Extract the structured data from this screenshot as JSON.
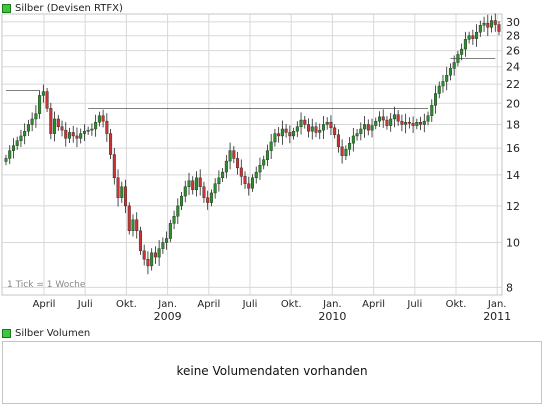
{
  "header": {
    "price_title": "Silber (Devisen RTFX)",
    "volume_title": "Silber Volumen"
  },
  "volume_message": "keine Volumendaten vorhanden",
  "tick_note": "1 Tick = 1 Woche",
  "colors": {
    "up": "#2a8f2a",
    "down": "#cc3333",
    "wick": "#222222",
    "grid": "#d8d8d8",
    "swatch": "#3fc63f"
  },
  "chart_data": {
    "type": "candlestick",
    "title": "Silber (Devisen RTFX)",
    "y_scale": "log",
    "ylim": [
      7.7,
      31.2
    ],
    "y_ticks": [
      8,
      10,
      12,
      14,
      16,
      18,
      20,
      22,
      24,
      26,
      28,
      30
    ],
    "x_ticks": [
      {
        "label": "April",
        "year": ""
      },
      {
        "label": "Juli",
        "year": ""
      },
      {
        "label": "Okt.",
        "year": ""
      },
      {
        "label": "Jan.",
        "year": "2009"
      },
      {
        "label": "April",
        "year": ""
      },
      {
        "label": "Juli",
        "year": ""
      },
      {
        "label": "Okt.",
        "year": ""
      },
      {
        "label": "Jan.",
        "year": "2010"
      },
      {
        "label": "April",
        "year": ""
      },
      {
        "label": "Juli",
        "year": ""
      },
      {
        "label": "Okt.",
        "year": ""
      },
      {
        "label": "Jan.",
        "year": "2011"
      }
    ],
    "weekly_close": [
      15.2,
      15.8,
      16.2,
      16.6,
      17.0,
      17.4,
      18.0,
      18.5,
      19.0,
      20.8,
      21.2,
      19.5,
      17.2,
      18.5,
      17.8,
      17.5,
      16.8,
      17.3,
      17.0,
      16.8,
      17.2,
      17.4,
      17.5,
      17.6,
      18.2,
      18.8,
      18.3,
      17.2,
      15.5,
      13.8,
      12.5,
      13.2,
      12.0,
      10.6,
      11.2,
      10.6,
      9.6,
      9.2,
      8.9,
      9.5,
      9.3,
      9.7,
      10.0,
      10.2,
      11.0,
      11.4,
      12.0,
      12.6,
      13.2,
      13.6,
      13.0,
      13.8,
      13.2,
      12.5,
      12.2,
      12.8,
      13.4,
      13.8,
      14.2,
      15.0,
      15.8,
      15.2,
      14.5,
      13.9,
      13.4,
      13.1,
      13.8,
      14.2,
      14.7,
      15.1,
      15.8,
      16.5,
      17.2,
      17.0,
      17.6,
      17.3,
      17.0,
      17.4,
      17.8,
      18.4,
      18.0,
      17.4,
      17.8,
      17.3,
      17.5,
      18.0,
      18.2,
      17.7,
      17.1,
      16.1,
      15.4,
      15.9,
      16.4,
      17.0,
      17.2,
      17.6,
      18.0,
      17.5,
      17.9,
      18.3,
      18.7,
      18.4,
      17.9,
      18.5,
      18.9,
      18.3,
      18.0,
      18.2,
      18.1,
      17.9,
      18.2,
      18.0,
      18.3,
      18.8,
      19.8,
      21.0,
      21.8,
      22.3,
      23.0,
      23.8,
      24.5,
      25.5,
      26.2,
      27.5,
      28.0,
      27.6,
      28.5,
      29.5,
      29.8,
      29.2,
      30.2,
      29.6,
      28.6
    ],
    "resistance_lines": [
      {
        "level": 21.3,
        "from_week": 0,
        "to_week": 9
      },
      {
        "level": 19.5,
        "from_week": 22,
        "to_week": 113
      },
      {
        "level": 25.0,
        "from_week": 119,
        "to_week": 131
      }
    ]
  }
}
